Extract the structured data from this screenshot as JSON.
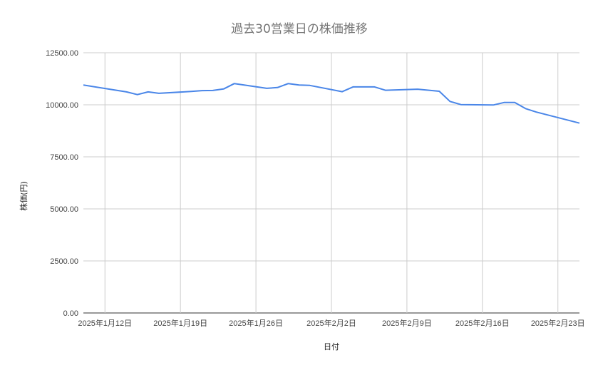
{
  "chart_data": {
    "type": "line",
    "title": "過去30営業日の株価推移",
    "xlabel": "日付",
    "ylabel": "株価(円)",
    "ylim": [
      0,
      12500
    ],
    "xlim": [
      "2025-01-10",
      "2025-02-25"
    ],
    "yticks": [
      "0.00",
      "2500.00",
      "5000.00",
      "7500.00",
      "10000.00",
      "12500.00"
    ],
    "xticks": [
      {
        "date": "2025-01-12",
        "label": "2025年1月12日"
      },
      {
        "date": "2025-01-19",
        "label": "2025年1月19日"
      },
      {
        "date": "2025-01-26",
        "label": "2025年1月26日"
      },
      {
        "date": "2025-02-02",
        "label": "2025年2月2日"
      },
      {
        "date": "2025-02-09",
        "label": "2025年2月9日"
      },
      {
        "date": "2025-02-16",
        "label": "2025年2月16日"
      },
      {
        "date": "2025-02-23",
        "label": "2025年2月23日"
      }
    ],
    "grid": true,
    "legend": "none",
    "line_color": "#4a86e8",
    "series": [
      {
        "x": [
          "2025-01-10",
          "2025-01-14",
          "2025-01-15",
          "2025-01-16",
          "2025-01-17",
          "2025-01-20",
          "2025-01-21",
          "2025-01-22",
          "2025-01-23",
          "2025-01-24",
          "2025-01-27",
          "2025-01-28",
          "2025-01-29",
          "2025-01-30",
          "2025-01-31",
          "2025-02-03",
          "2025-02-04",
          "2025-02-05",
          "2025-02-06",
          "2025-02-07",
          "2025-02-10",
          "2025-02-12",
          "2025-02-13",
          "2025-02-14",
          "2025-02-17",
          "2025-02-18",
          "2025-02-19",
          "2025-02-20",
          "2025-02-21",
          "2025-02-25"
        ],
        "values": [
          10950,
          10620,
          10490,
          10620,
          10550,
          10640,
          10680,
          10690,
          10760,
          11020,
          10790,
          10830,
          11020,
          10950,
          10930,
          10630,
          10860,
          10860,
          10860,
          10700,
          10750,
          10650,
          10160,
          10010,
          9990,
          10110,
          10110,
          9820,
          9650,
          9120
        ]
      }
    ]
  }
}
